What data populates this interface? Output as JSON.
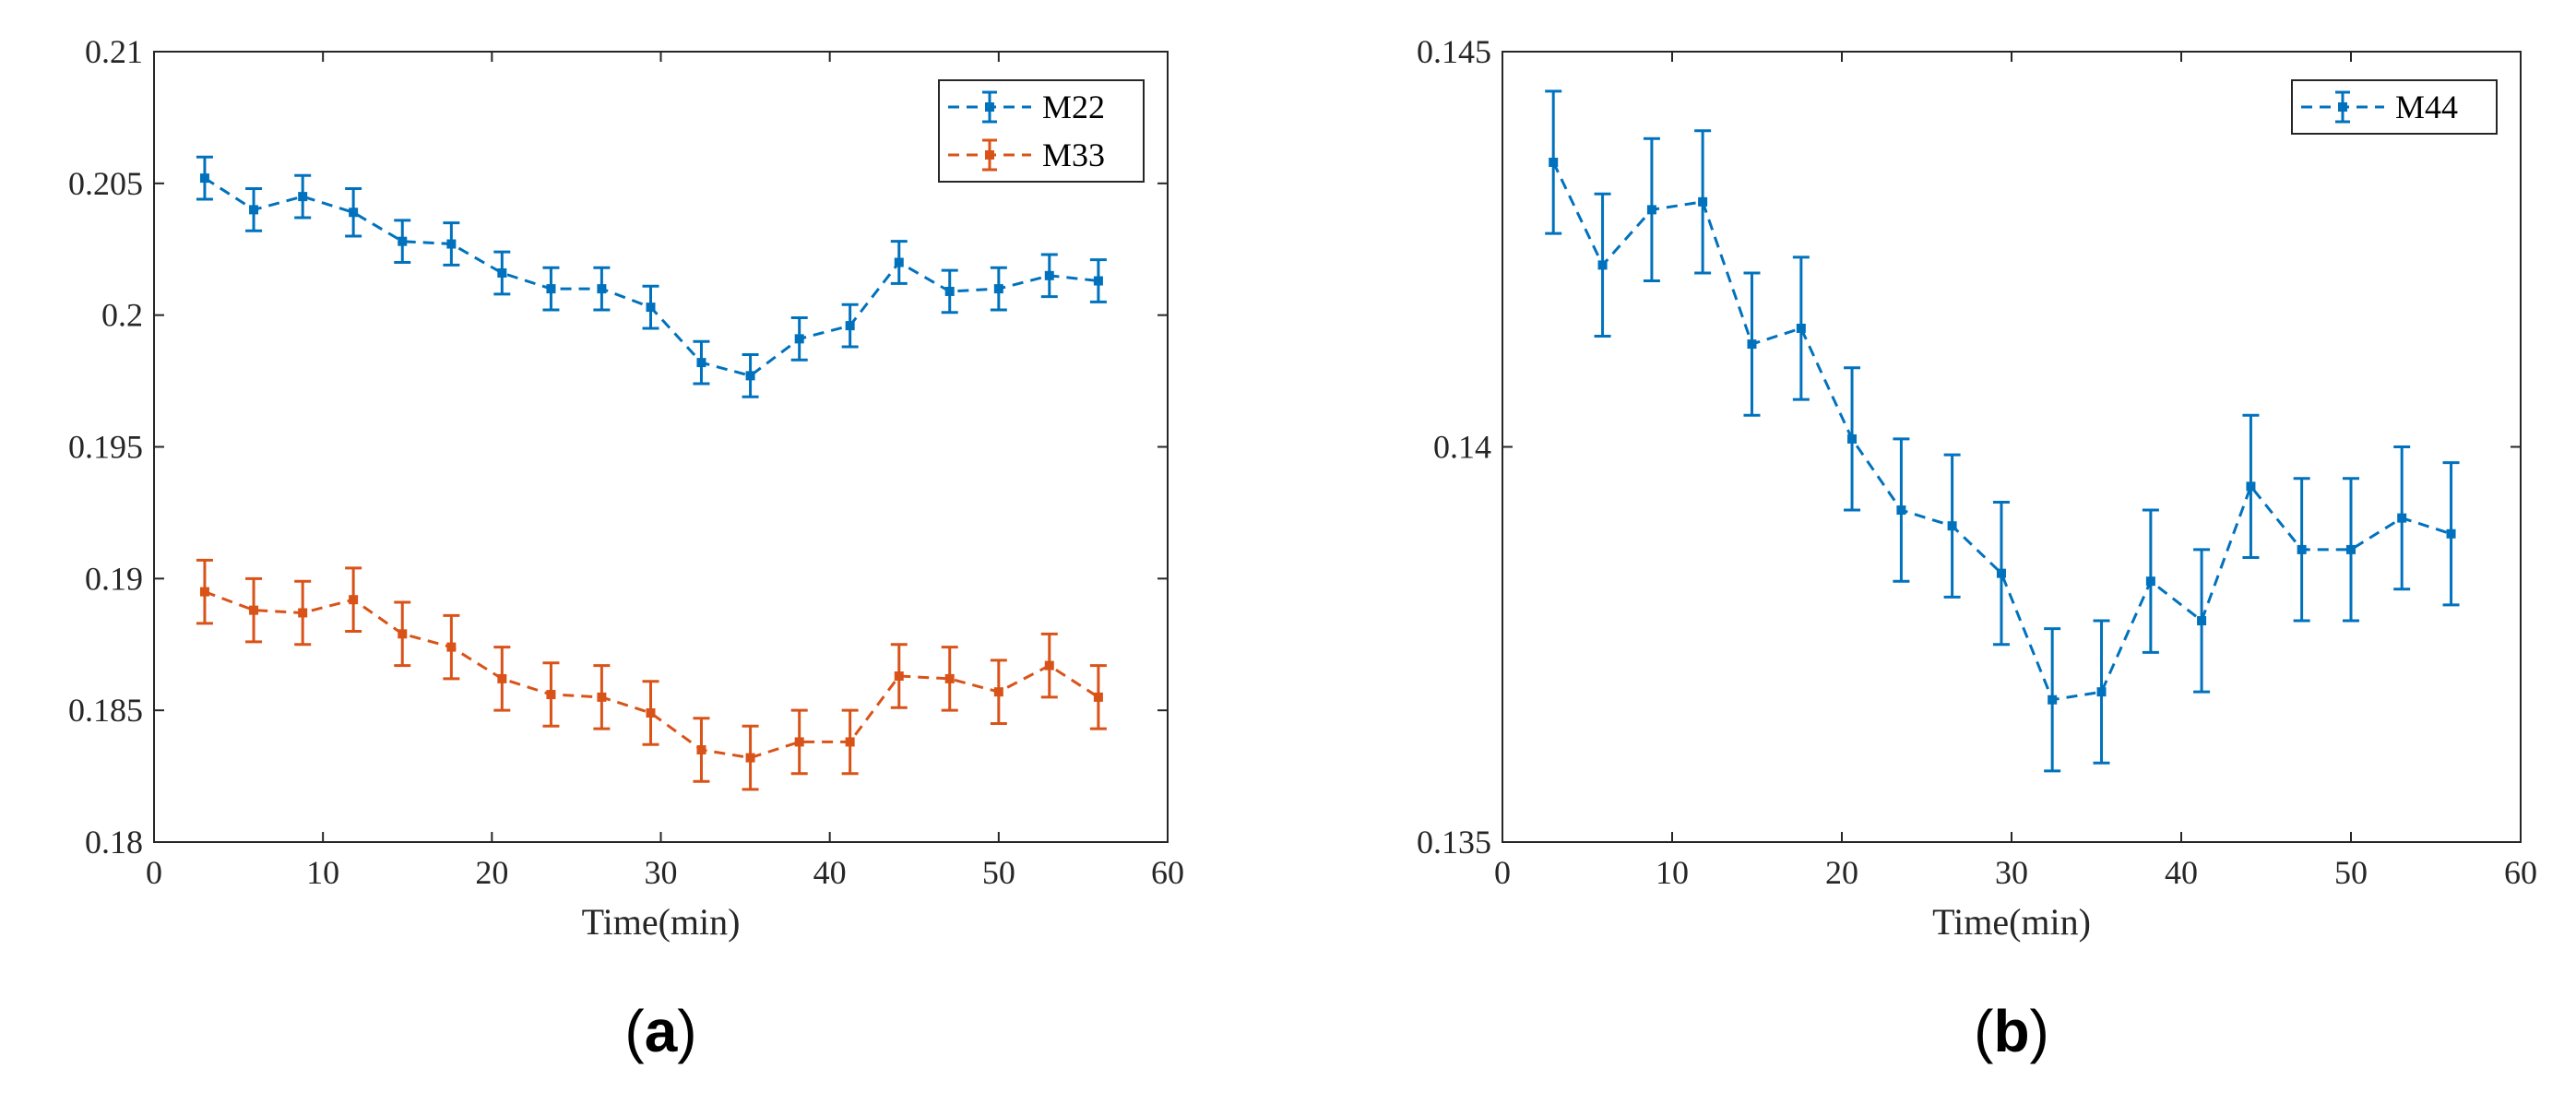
{
  "chart_data": [
    {
      "type": "line",
      "panel_label": "a",
      "title": "",
      "xlabel": "Time(min)",
      "ylabel": "",
      "xlim": [
        0,
        60
      ],
      "ylim": [
        0.18,
        0.21
      ],
      "xticks": [
        0,
        10,
        20,
        30,
        40,
        50,
        60
      ],
      "xtick_labels": [
        "0",
        "10",
        "20",
        "30",
        "40",
        "50",
        "60"
      ],
      "yticks": [
        0.18,
        0.185,
        0.19,
        0.195,
        0.2,
        0.205,
        0.21
      ],
      "ytick_labels": [
        "0.18",
        "0.185",
        "0.19",
        "0.195",
        "0.2",
        "0.205",
        "0.21"
      ],
      "grid": false,
      "legend_position": "top-right",
      "x": [
        3,
        5.9,
        8.8,
        11.8,
        14.7,
        17.6,
        20.6,
        23.5,
        26.5,
        29.4,
        32.4,
        35.3,
        38.2,
        41.2,
        44.1,
        47.1,
        50,
        53,
        55.9
      ],
      "series": [
        {
          "name": "M22",
          "color": "#0072BD",
          "values": [
            0.2052,
            0.204,
            0.2045,
            0.2039,
            0.2028,
            0.2027,
            0.2016,
            0.201,
            0.201,
            0.2003,
            0.1982,
            0.1977,
            0.1991,
            0.1996,
            0.202,
            0.2009,
            0.201,
            0.2015,
            0.2013
          ],
          "errors": [
            0.0008,
            0.0008,
            0.0008,
            0.0009,
            0.0008,
            0.0008,
            0.0008,
            0.0008,
            0.0008,
            0.0008,
            0.0008,
            0.0008,
            0.0008,
            0.0008,
            0.0008,
            0.0008,
            0.0008,
            0.0008,
            0.0008
          ]
        },
        {
          "name": "M33",
          "color": "#D95319",
          "values": [
            0.1895,
            0.1888,
            0.1887,
            0.1892,
            0.1879,
            0.1874,
            0.1862,
            0.1856,
            0.1855,
            0.1849,
            0.1835,
            0.1832,
            0.1838,
            0.1838,
            0.1863,
            0.1862,
            0.1857,
            0.1867,
            0.1855
          ],
          "errors": [
            0.0012,
            0.0012,
            0.0012,
            0.0012,
            0.0012,
            0.0012,
            0.0012,
            0.0012,
            0.0012,
            0.0012,
            0.0012,
            0.0012,
            0.0012,
            0.0012,
            0.0012,
            0.0012,
            0.0012,
            0.0012,
            0.0012
          ]
        }
      ]
    },
    {
      "type": "line",
      "panel_label": "b",
      "title": "",
      "xlabel": "Time(min)",
      "ylabel": "",
      "xlim": [
        0,
        60
      ],
      "ylim": [
        0.135,
        0.145
      ],
      "xticks": [
        0,
        10,
        20,
        30,
        40,
        50,
        60
      ],
      "xtick_labels": [
        "0",
        "10",
        "20",
        "30",
        "40",
        "50",
        "60"
      ],
      "yticks": [
        0.135,
        0.14,
        0.145
      ],
      "ytick_labels": [
        "0.135",
        "0.14",
        "0.145"
      ],
      "grid": false,
      "legend_position": "top-right",
      "x": [
        3,
        5.9,
        8.8,
        11.8,
        14.7,
        17.6,
        20.6,
        23.5,
        26.5,
        29.4,
        32.4,
        35.3,
        38.2,
        41.2,
        44.1,
        47.1,
        50,
        53,
        55.9
      ],
      "series": [
        {
          "name": "M44",
          "color": "#0072BD",
          "values": [
            0.1436,
            0.1423,
            0.143,
            0.1431,
            0.1413,
            0.1415,
            0.1401,
            0.1392,
            0.139,
            0.1384,
            0.1368,
            0.1369,
            0.1383,
            0.1378,
            0.1395,
            0.1387,
            0.1387,
            0.1391,
            0.1389
          ],
          "errors": [
            0.0009,
            0.0009,
            0.0009,
            0.0009,
            0.0009,
            0.0009,
            0.0009,
            0.0009,
            0.0009,
            0.0009,
            0.0009,
            0.0009,
            0.0009,
            0.0009,
            0.0009,
            0.0009,
            0.0009,
            0.0009,
            0.0009
          ]
        }
      ]
    }
  ]
}
